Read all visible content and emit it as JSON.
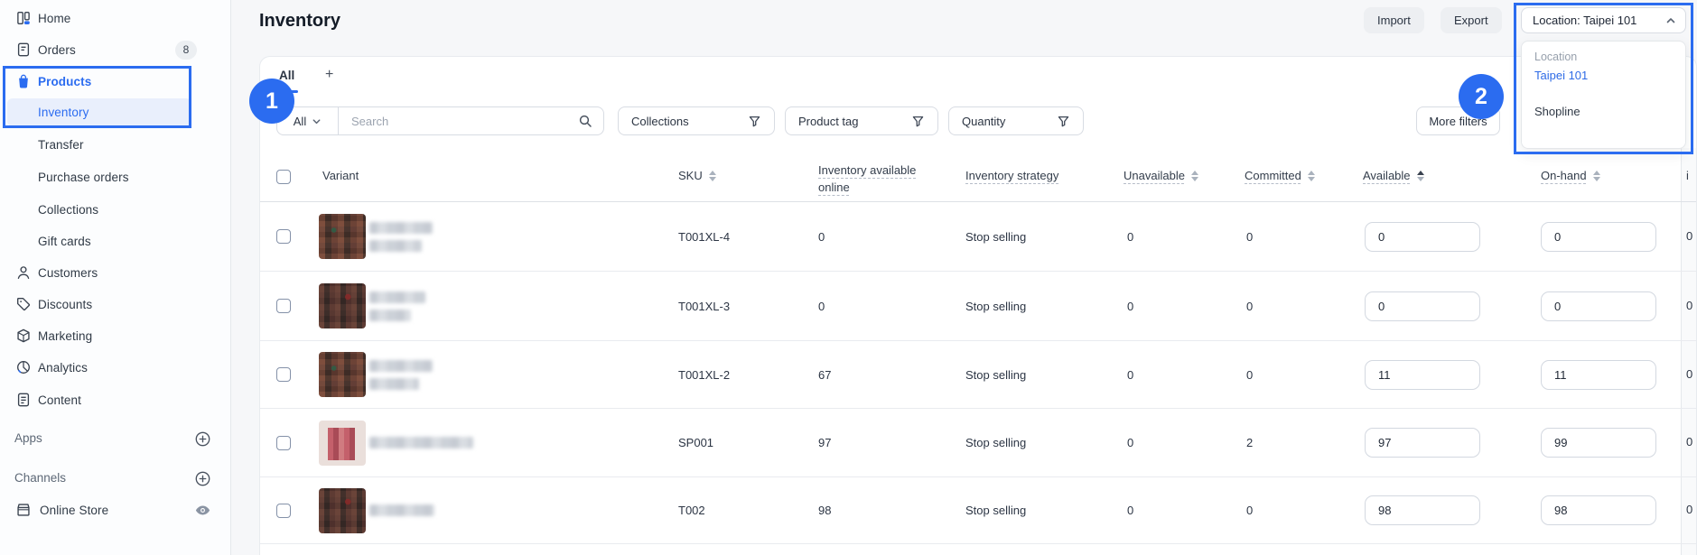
{
  "colors": {
    "accent": "#2b6cf0",
    "link_blue": "#2e6be6",
    "selected_bg": "#e9effc"
  },
  "sidebar": {
    "items": [
      {
        "label": "Home",
        "icon": "home"
      },
      {
        "label": "Orders",
        "icon": "orders",
        "badge": "8"
      },
      {
        "label": "Products",
        "icon": "products",
        "active": true
      },
      {
        "label": "Inventory",
        "indent": true,
        "selected": true
      },
      {
        "label": "Transfer",
        "indent": true
      },
      {
        "label": "Purchase orders",
        "indent": true
      },
      {
        "label": "Collections",
        "indent": true
      },
      {
        "label": "Gift cards",
        "indent": true
      },
      {
        "label": "Customers",
        "icon": "customers"
      },
      {
        "label": "Discounts",
        "icon": "discounts"
      },
      {
        "label": "Marketing",
        "icon": "marketing"
      },
      {
        "label": "Analytics",
        "icon": "analytics"
      },
      {
        "label": "Content",
        "icon": "content"
      }
    ],
    "sections": [
      {
        "label": "Apps",
        "action_icon": "plus-circle"
      },
      {
        "label": "Channels",
        "action_icon": "plus-circle"
      }
    ],
    "channel_items": [
      {
        "label": "Online Store",
        "icon": "storefront",
        "action_icon": "eye"
      }
    ]
  },
  "header": {
    "title": "Inventory",
    "import_label": "Import",
    "export_label": "Export",
    "location_button": "Location: Taipei 101"
  },
  "location_dropdown": {
    "group_label": "Location",
    "options": [
      {
        "label": "Taipei 101",
        "selected": true
      },
      {
        "label": "Shopline",
        "selected": false
      }
    ]
  },
  "tabs": {
    "active_tab": "All",
    "add_label": "+"
  },
  "filters": {
    "scope_select": "All",
    "search_placeholder": "Search",
    "buttons": [
      "Collections",
      "Product tag",
      "Quantity"
    ],
    "more_filters": "More filters"
  },
  "table": {
    "columns": {
      "variant": "Variant",
      "sku": "SKU",
      "available_online": "Inventory available online",
      "strategy": "Inventory strategy",
      "unavailable": "Unavailable",
      "committed": "Committed",
      "available": "Available",
      "on_hand": "On-hand",
      "cutoff": "i"
    },
    "sort_active_column": "Available",
    "rows": [
      {
        "sku": "T001XL-4",
        "available_online": "0",
        "strategy": "Stop selling",
        "unavailable": "0",
        "committed": "0",
        "available": "0",
        "on_hand": "0",
        "cut": "0",
        "thumb": "plaid-a",
        "blur_lines": [
          70,
          58
        ]
      },
      {
        "sku": "T001XL-3",
        "available_online": "0",
        "strategy": "Stop selling",
        "unavailable": "0",
        "committed": "0",
        "available": "0",
        "on_hand": "0",
        "cut": "0",
        "thumb": "plaid-b",
        "blur_lines": [
          62,
          46
        ]
      },
      {
        "sku": "T001XL-2",
        "available_online": "67",
        "strategy": "Stop selling",
        "unavailable": "0",
        "committed": "0",
        "available": "11",
        "on_hand": "11",
        "cut": "0",
        "thumb": "plaid-a",
        "blur_lines": [
          70,
          55
        ]
      },
      {
        "sku": "SP001",
        "available_online": "97",
        "strategy": "Stop selling",
        "unavailable": "0",
        "committed": "2",
        "available": "97",
        "on_hand": "99",
        "cut": "0",
        "thumb": "light-red",
        "blur_lines": [
          115
        ]
      },
      {
        "sku": "T002",
        "available_online": "98",
        "strategy": "Stop selling",
        "unavailable": "0",
        "committed": "0",
        "available": "98",
        "on_hand": "98",
        "cut": "0",
        "thumb": "plaid-b",
        "blur_lines": [
          72
        ]
      }
    ]
  },
  "annotations": {
    "callout1": "1",
    "callout2": "2"
  }
}
